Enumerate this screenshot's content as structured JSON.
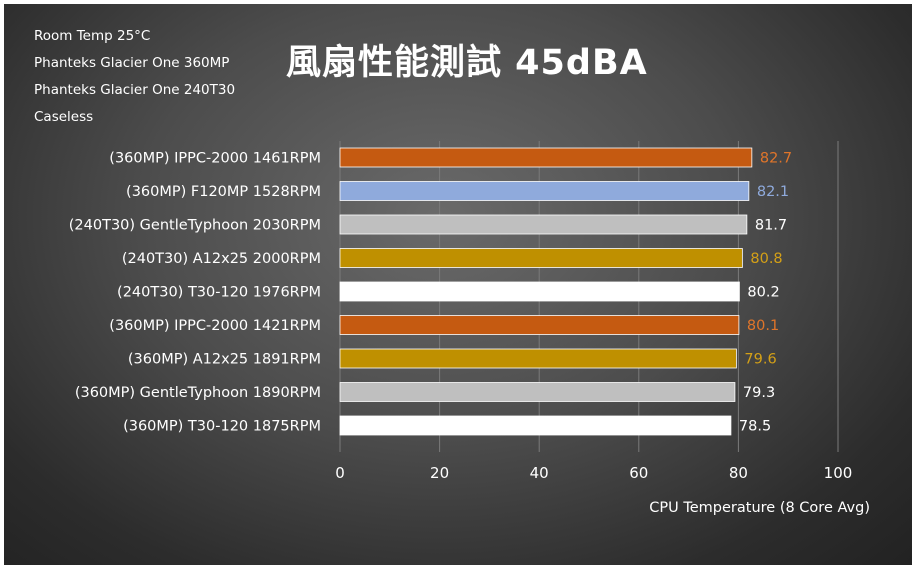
{
  "chart_data": {
    "type": "bar",
    "orientation": "horizontal",
    "title": "風扇性能測試 45dBA",
    "notes": [
      "Room Temp 25°C",
      "Phanteks Glacier One 360MP",
      "Phanteks Glacier One 240T30",
      "Caseless"
    ],
    "xlabel": "CPU Temperature (8 Core Avg)",
    "ylabel": "",
    "xlim": [
      0,
      100
    ],
    "xticks": [
      "0",
      "20",
      "40",
      "60",
      "80",
      "100"
    ],
    "grid": "vertical",
    "legend": "none",
    "categories": [
      "(360MP) IPPC-2000 1461RPM",
      "(360MP) F120MP 1528RPM",
      "(240T30) GentleTyphoon 2030RPM",
      "(240T30) A12x25 2000RPM",
      "(240T30) T30-120 1976RPM",
      "(360MP) IPPC-2000 1421RPM",
      "(360MP) A12x25 1891RPM",
      "(360MP) GentleTyphoon 1890RPM",
      "(360MP) T30-120 1875RPM"
    ],
    "values": [
      82.7,
      82.1,
      81.7,
      80.8,
      80.2,
      80.1,
      79.6,
      79.3,
      78.5
    ],
    "value_labels": [
      "82.7",
      "82.1",
      "81.7",
      "80.8",
      "80.2",
      "80.1",
      "79.6",
      "79.3",
      "78.5"
    ],
    "bar_colors": [
      "#c55a11",
      "#8faadc",
      "#bfbfbf",
      "#bf9000",
      "#ffffff",
      "#c55a11",
      "#bf9000",
      "#bfbfbf",
      "#ffffff"
    ],
    "label_colors": [
      "#e0752a",
      "#8faadc",
      "#ffffff",
      "#d4a017",
      "#ffffff",
      "#e0752a",
      "#d4a017",
      "#ffffff",
      "#ffffff"
    ]
  }
}
